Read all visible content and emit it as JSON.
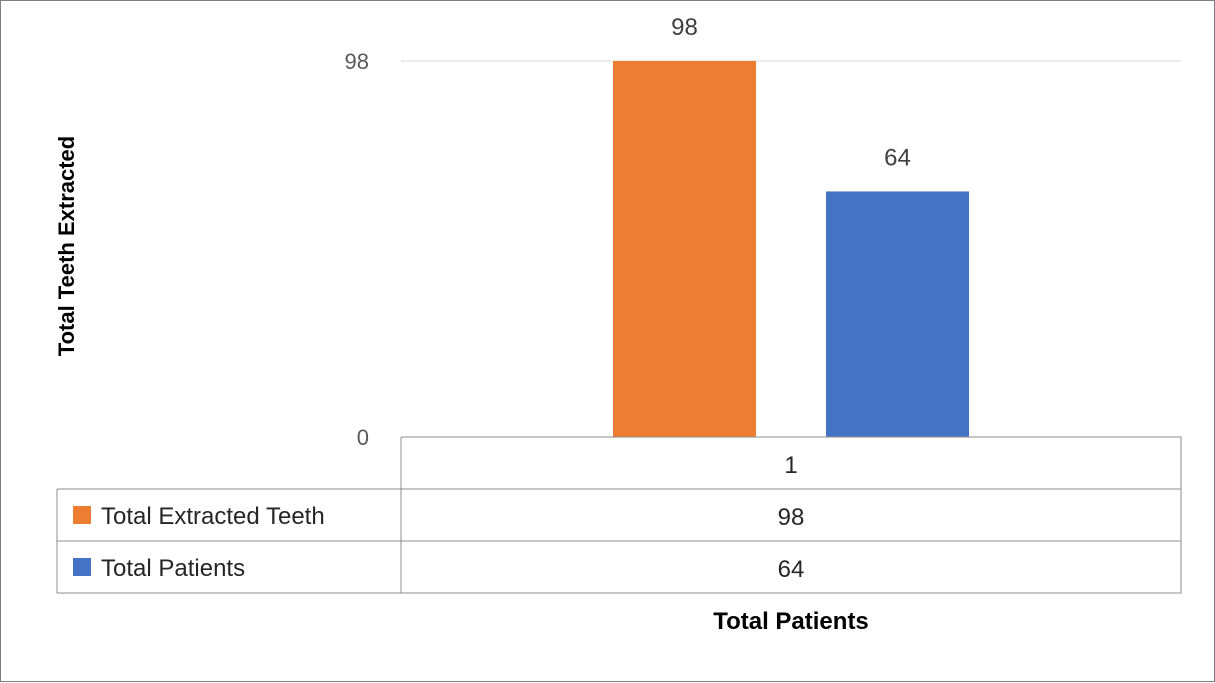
{
  "chart_data": {
    "type": "bar",
    "categories": [
      "1"
    ],
    "series": [
      {
        "name": "Total Extracted Teeth",
        "values": [
          98
        ],
        "color": "#ED7D31"
      },
      {
        "name": "Total Patients",
        "values": [
          64
        ],
        "color": "#4472C4"
      }
    ],
    "xlabel": "Total Patients",
    "ylabel": "Total Teeth Extracted",
    "ylim": [
      0,
      98
    ],
    "yticks": [
      "98",
      "0"
    ],
    "data_labels": [
      "98",
      "64"
    ],
    "grid": true,
    "legend": "data-table-left"
  }
}
